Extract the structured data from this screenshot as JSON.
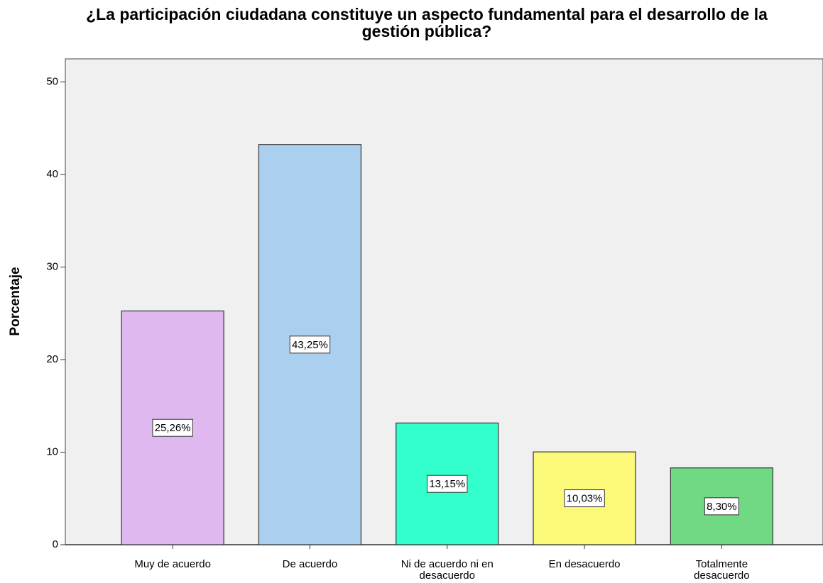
{
  "chart_data": {
    "type": "bar",
    "title": "¿La participación ciudadana constituye un aspecto fundamental para el desarrollo de la gestión pública?",
    "y_label": "Porcentaje",
    "categories": [
      "Muy de acuerdo",
      "De acuerdo",
      "Ni de acuerdo ni en desacuerdo",
      "En desacuerdo",
      "Totalmente desacuerdo"
    ],
    "values": [
      25.26,
      43.25,
      13.15,
      10.03,
      8.3
    ],
    "value_labels": [
      "25,26%",
      "43,25%",
      "13,15%",
      "10,03%",
      "8,30%"
    ],
    "colors": [
      "#dfb8f0",
      "#abcfee",
      "#33ffcc",
      "#fbf87a",
      "#6fd984"
    ],
    "ylim": [
      0,
      52.5
    ],
    "yticks": [
      0,
      10,
      20,
      30,
      40,
      50
    ],
    "grid": false
  }
}
